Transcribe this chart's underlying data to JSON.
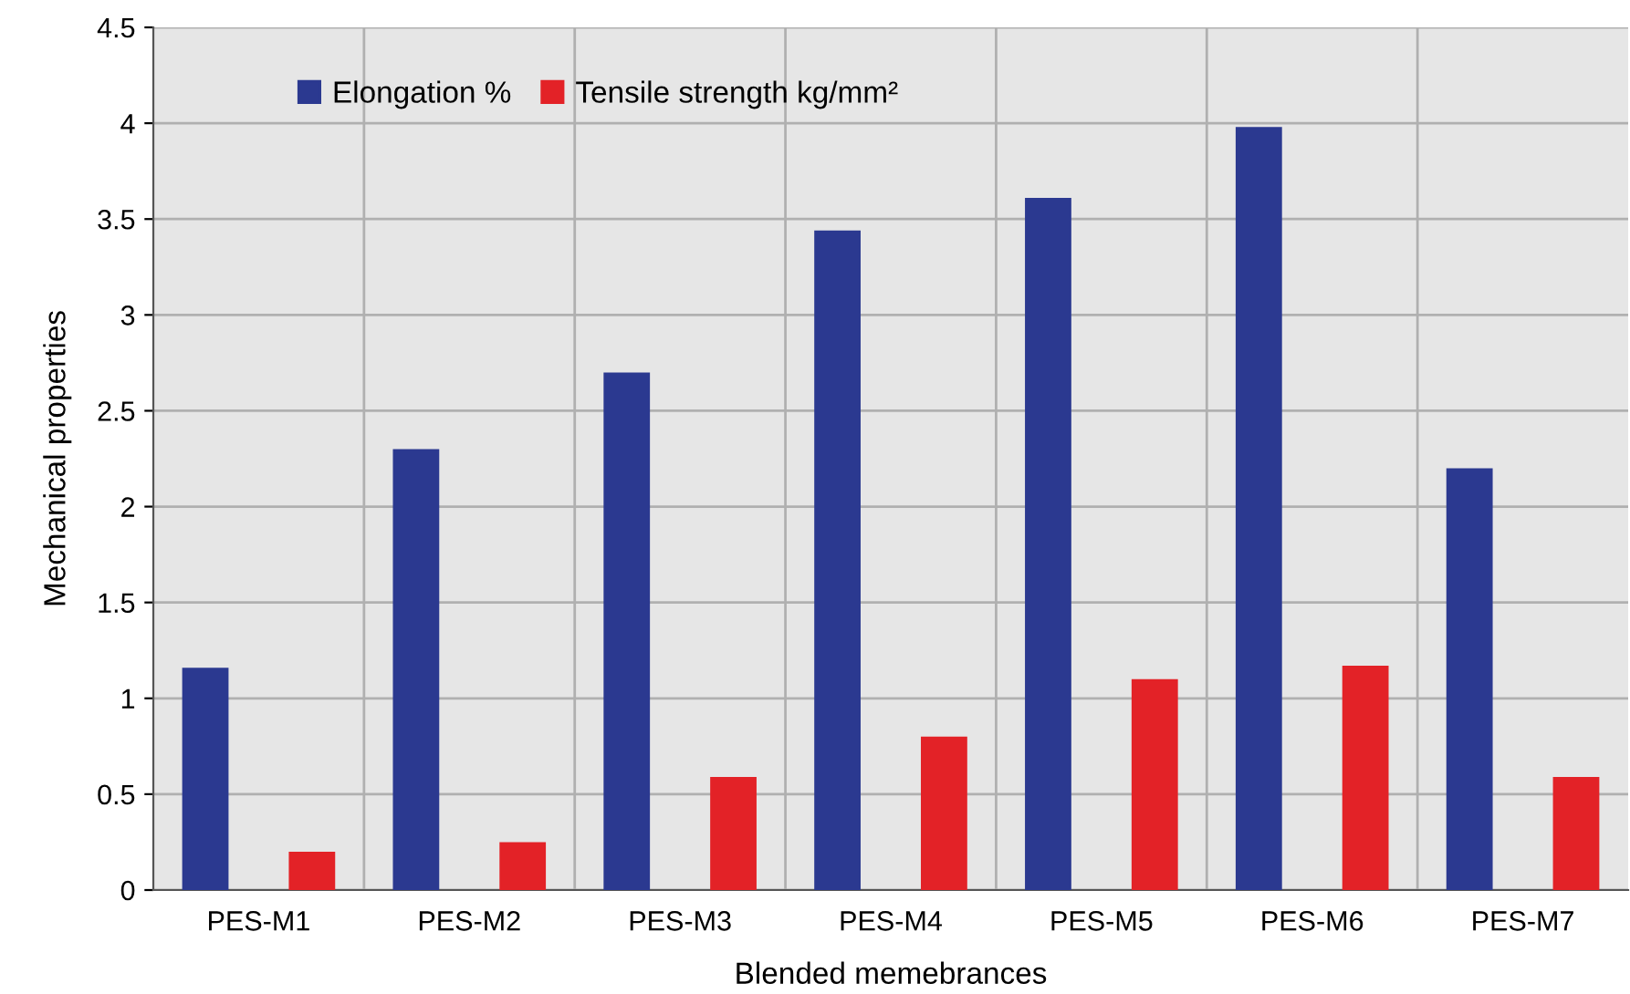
{
  "chart_data": {
    "type": "bar",
    "xlabel": "Blended memebrances",
    "ylabel": "Mechanical properties",
    "categories": [
      "PES-M1",
      "PES-M2",
      "PES-M3",
      "PES-M4",
      "PES-M5",
      "PES-M6",
      "PES-M7"
    ],
    "series": [
      {
        "name": "Elongation %",
        "color": "#2b3990",
        "values": [
          1.16,
          2.3,
          2.7,
          3.44,
          3.61,
          3.98,
          2.2
        ]
      },
      {
        "name": "Tensile strength kg/mm²",
        "color": "#e32227",
        "values": [
          0.2,
          0.25,
          0.59,
          0.8,
          1.1,
          1.17,
          0.59
        ]
      }
    ],
    "ylim": [
      0,
      4.5
    ],
    "yticks": [
      0,
      0.5,
      1,
      1.5,
      2,
      2.5,
      3,
      3.5,
      4,
      4.5
    ],
    "grid": true,
    "legend": "top left"
  }
}
